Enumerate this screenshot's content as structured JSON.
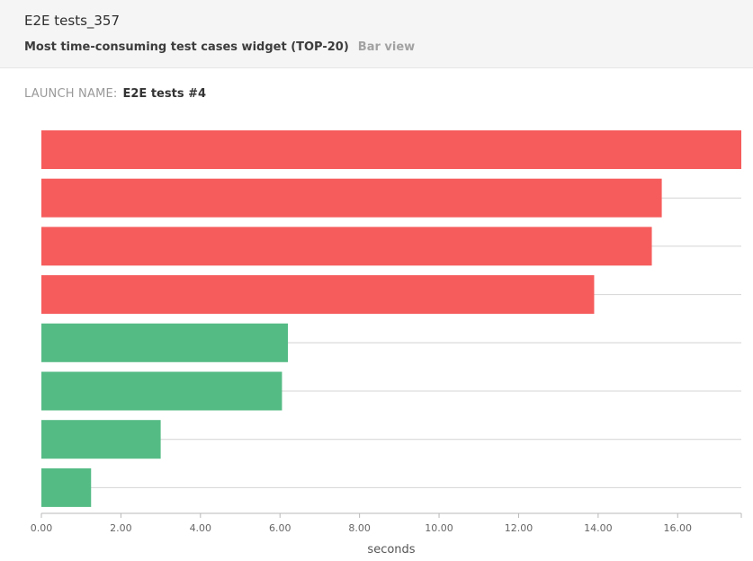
{
  "widget": {
    "title": "E2E tests_357",
    "subtitle": "Most time-consuming test cases widget (TOP-20)",
    "view_mode": "Bar view"
  },
  "launch": {
    "label": "LAUNCH NAME:",
    "value": "E2E tests #4"
  },
  "colors": {
    "failed": "#f65c5c",
    "passed": "#55bb85",
    "grid": "#d4d4d4",
    "axis": "#b8b8b8"
  },
  "chart_data": {
    "type": "bar",
    "orientation": "horizontal",
    "xlabel": "seconds",
    "xlim": [
      0,
      17.6
    ],
    "x_ticks": [
      "0.00",
      "2.00",
      "4.00",
      "6.00",
      "8.00",
      "10.00",
      "12.00",
      "14.00",
      "16.00"
    ],
    "grid": true,
    "series": [
      {
        "values": [
          17.6,
          15.6,
          15.35,
          13.9,
          6.2,
          6.05,
          3.0,
          1.25
        ],
        "statuses": [
          "failed",
          "failed",
          "failed",
          "failed",
          "passed",
          "passed",
          "passed",
          "passed"
        ]
      }
    ]
  }
}
